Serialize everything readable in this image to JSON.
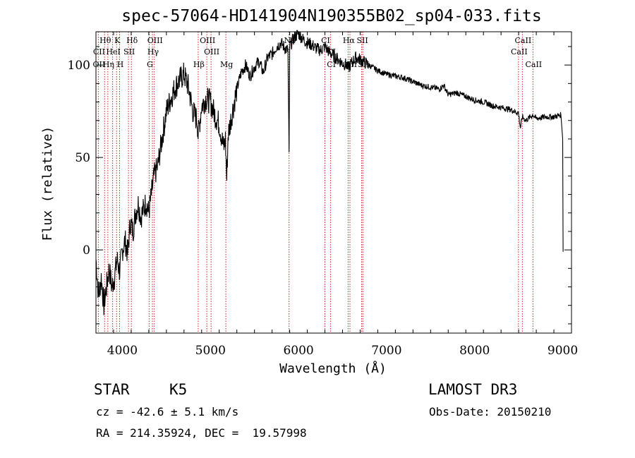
{
  "chart_data": {
    "type": "line",
    "title": "spec-57064-HD141904N190355B02_sp04-033.fits",
    "xlabel": "Wavelength (Å)",
    "ylabel": "Flux (relative)",
    "xlim": [
      3700,
      9100
    ],
    "ylim": [
      -45,
      118
    ],
    "x_ticks": [
      4000,
      5000,
      6000,
      7000,
      8000,
      9000
    ],
    "y_ticks": [
      0,
      50,
      100
    ],
    "series": [
      {
        "name": "spectrum",
        "x": [
          3700,
          3730,
          3760,
          3790,
          3820,
          3850,
          3880,
          3910,
          3940,
          3970,
          4000,
          4030,
          4060,
          4090,
          4120,
          4150,
          4180,
          4210,
          4240,
          4270,
          4300,
          4330,
          4360,
          4400,
          4450,
          4500,
          4550,
          4600,
          4650,
          4700,
          4750,
          4800,
          4850,
          4860,
          4900,
          4950,
          5000,
          5050,
          5100,
          5150,
          5170,
          5185,
          5200,
          5250,
          5300,
          5350,
          5400,
          5450,
          5500,
          5550,
          5600,
          5650,
          5700,
          5750,
          5800,
          5850,
          5880,
          5893,
          5900,
          5950,
          6000,
          6050,
          6100,
          6150,
          6200,
          6250,
          6300,
          6350,
          6400,
          6450,
          6500,
          6550,
          6563,
          6600,
          6650,
          6700,
          6800,
          6900,
          7000,
          7100,
          7200,
          7300,
          7400,
          7500,
          7600,
          7650,
          7700,
          7800,
          7900,
          8000,
          8100,
          8200,
          8300,
          8400,
          8498,
          8520,
          8542,
          8580,
          8662,
          8700,
          8800,
          8900,
          8980,
          9000,
          9005
        ],
        "y": [
          -5,
          -25,
          -15,
          -30,
          -20,
          -10,
          -20,
          -15,
          -5,
          -12,
          0,
          5,
          -2,
          15,
          10,
          20,
          25,
          18,
          22,
          26,
          20,
          30,
          40,
          45,
          60,
          75,
          82,
          88,
          92,
          95,
          88,
          75,
          70,
          62,
          78,
          82,
          80,
          73,
          68,
          55,
          60,
          38,
          62,
          75,
          87,
          96,
          100,
          94,
          99,
          102,
          96,
          104,
          106,
          110,
          112,
          109,
          108,
          50,
          110,
          115,
          117,
          114,
          112,
          111,
          109,
          108,
          110,
          107,
          105,
          103,
          101,
          100,
          98,
          101,
          104,
          103,
          100,
          97,
          95,
          94,
          93,
          91,
          89,
          88,
          87,
          89,
          84,
          85,
          83,
          81,
          80,
          78,
          77,
          76,
          74,
          66,
          72,
          70,
          73,
          71,
          72,
          72,
          73,
          60,
          -1
        ]
      }
    ],
    "lines_top": [
      {
        "label": "Hθ",
        "x": 3798
      },
      {
        "label": "K",
        "x": 3934
      },
      {
        "label": "Hδ",
        "x": 4102
      },
      {
        "label": "OIII",
        "x": 4363
      },
      {
        "label": "OIII",
        "x": 4959
      },
      {
        "label": "Na",
        "x": 5893
      },
      {
        "label": "CI",
        "x": 6300
      },
      {
        "label": "Hα",
        "x": 6563
      },
      {
        "label": "SII",
        "x": 6717
      },
      {
        "label": "CaII",
        "x": 8542
      }
    ],
    "lines_mid": [
      {
        "label": "CII",
        "x": 3727
      },
      {
        "label": "HeI",
        "x": 3889
      },
      {
        "label": "SII",
        "x": 4069
      },
      {
        "label": "Hγ",
        "x": 4341
      },
      {
        "label": "OIII",
        "x": 5007
      },
      {
        "label": "CI",
        "x": 6365
      },
      {
        "label": "CaII",
        "x": 8498
      }
    ],
    "lines_low": [
      {
        "label": "OII",
        "x": 3727
      },
      {
        "label": "Hη",
        "x": 3835
      },
      {
        "label": "H",
        "x": 3968
      },
      {
        "label": "G",
        "x": 4304
      },
      {
        "label": "Hβ",
        "x": 4861
      },
      {
        "label": "Mg",
        "x": 5175
      },
      {
        "label": "CI",
        "x": 6365
      },
      {
        "label": "NII",
        "x": 6584
      },
      {
        "label": "SII",
        "x": 6731
      },
      {
        "label": "CaII",
        "x": 8662
      }
    ]
  },
  "footer": {
    "class_label": "STAR",
    "subclass": "K5",
    "survey": "LAMOST DR3",
    "cz": "cz = -42.6 ± 5.1 km/s",
    "obs_date": "Obs-Date: 20150210",
    "coords": "RA = 214.35924, DEC =  19.57998"
  },
  "colors": {
    "line_marker": "#cc2222",
    "spectrum": "#000000"
  }
}
